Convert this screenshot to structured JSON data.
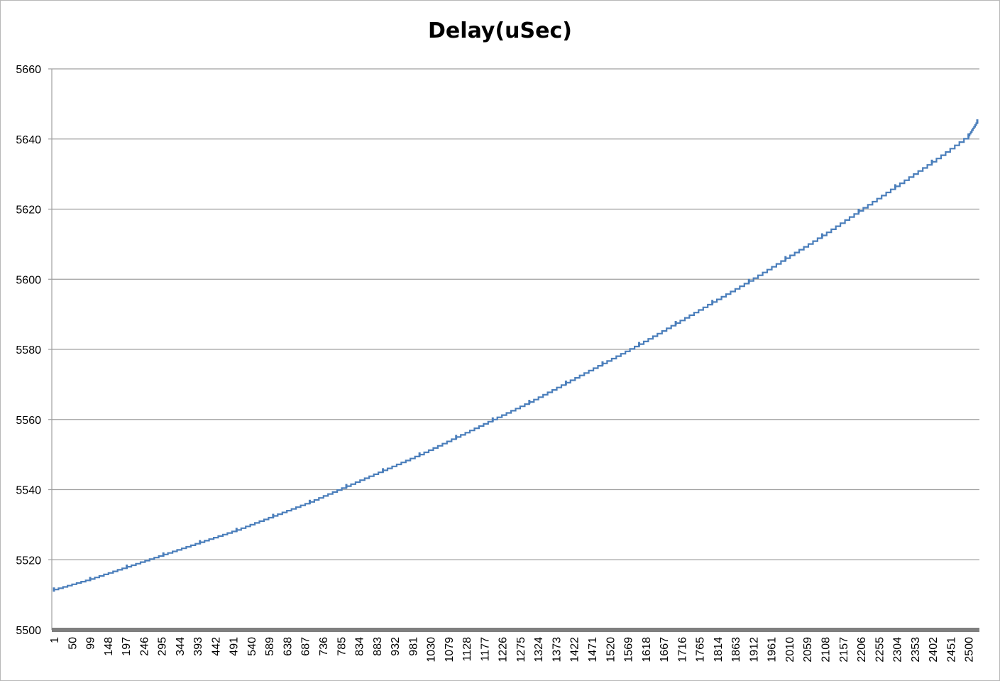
{
  "chart_data": {
    "type": "line",
    "title": "Delay(uSec)",
    "xlabel": "",
    "ylabel": "",
    "ylim": [
      5500,
      5660
    ],
    "yticks": [
      5500,
      5520,
      5540,
      5560,
      5580,
      5600,
      5620,
      5640,
      5660
    ],
    "grid": true,
    "legend": "none",
    "x_tick_labels": [
      "1",
      "50",
      "99",
      "148",
      "197",
      "246",
      "295",
      "344",
      "393",
      "442",
      "491",
      "540",
      "589",
      "638",
      "687",
      "736",
      "785",
      "834",
      "883",
      "932",
      "981",
      "1030",
      "1079",
      "1128",
      "1177",
      "1226",
      "1275",
      "1324",
      "1373",
      "1422",
      "1471",
      "1520",
      "1569",
      "1618",
      "1667",
      "1716",
      "1765",
      "1814",
      "1863",
      "1912",
      "1961",
      "2010",
      "2059",
      "2108",
      "2157",
      "2206",
      "2255",
      "2304",
      "2353",
      "2402",
      "2451",
      "2500"
    ],
    "series": [
      {
        "color": "#4a7ebb",
        "x": [
          1,
          100,
          200,
          300,
          400,
          500,
          600,
          700,
          800,
          900,
          1000,
          1100,
          1200,
          1300,
          1400,
          1500,
          1600,
          1700,
          1800,
          1900,
          2000,
          2100,
          2200,
          2300,
          2400,
          2500,
          2524
        ],
        "values": [
          5511.5,
          5514.5,
          5518,
          5521.5,
          5525,
          5528.5,
          5532.5,
          5536.5,
          5541,
          5545.5,
          5550,
          5555,
          5560,
          5565,
          5570.5,
          5576,
          5581.5,
          5587.5,
          5593.5,
          5599.5,
          5606,
          5612.5,
          5619.5,
          5626.5,
          5633.5,
          5641,
          5645
        ]
      }
    ]
  },
  "colors": {
    "line": "#4a7ebb",
    "grid": "#a0a0a0",
    "baseline": "#7f7f7f"
  }
}
